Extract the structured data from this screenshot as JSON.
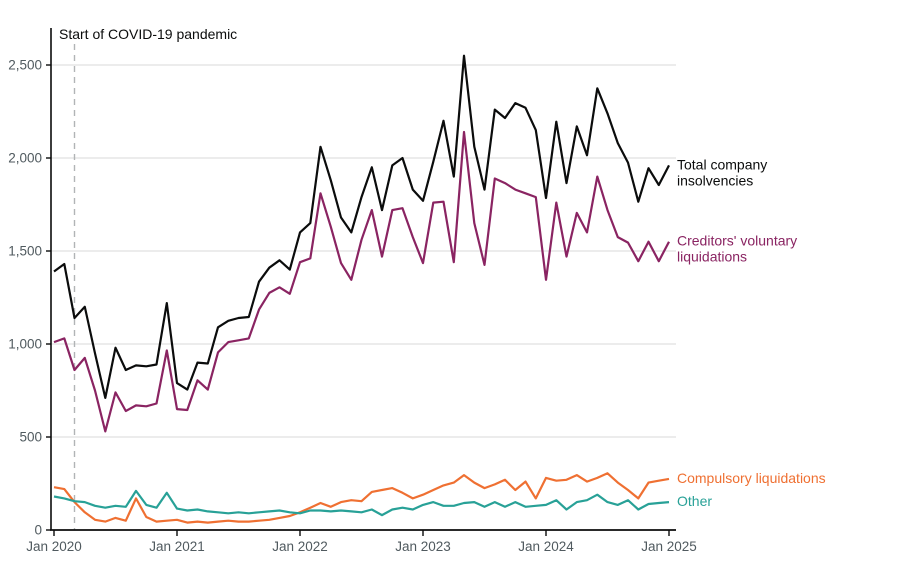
{
  "chart_data": {
    "type": "line",
    "title": "",
    "annotation": {
      "text": "Start of COVID-19 pandemic",
      "x_month": "Mar 2020"
    },
    "x_range": {
      "start": "Jan 2020",
      "end": "Jan 2025",
      "interval": "monthly",
      "points": 61
    },
    "x_tick_labels": [
      "Jan 2020",
      "Jan 2021",
      "Jan 2022",
      "Jan 2023",
      "Jan 2024",
      "Jan 2025"
    ],
    "y_tick_labels": [
      "0",
      "500",
      "1,000",
      "1,500",
      "2,000",
      "2,500"
    ],
    "y_tick_values": [
      0,
      500,
      1000,
      1500,
      2000,
      2500
    ],
    "ylim": [
      0,
      2600
    ],
    "grid": "horizontal",
    "legend_position": "line-end-labels-right",
    "colors": {
      "background": "#ffffff",
      "gridline": "#d9d9d9",
      "axis": "#0b0c0c",
      "tick_label": "#505a5f",
      "dashed_line": "#b1b4b6",
      "annotation_text": "#0b0c0c"
    },
    "series": [
      {
        "name": "Total company insolvencies",
        "label_lines": [
          "Total company",
          "insolvencies"
        ],
        "color": "#0b0c0c",
        "values": [
          1390,
          1430,
          1140,
          1200,
          950,
          710,
          980,
          860,
          885,
          880,
          890,
          1220,
          790,
          755,
          900,
          895,
          1090,
          1125,
          1140,
          1145,
          1335,
          1410,
          1450,
          1400,
          1600,
          1650,
          2060,
          1880,
          1680,
          1600,
          1790,
          1950,
          1720,
          1960,
          2000,
          1830,
          1770,
          1980,
          2200,
          1900,
          2550,
          2060,
          1830,
          2260,
          2215,
          2295,
          2270,
          2150,
          1785,
          2195,
          1865,
          2170,
          2015,
          2375,
          2240,
          2080,
          1975,
          1765,
          1945,
          1855,
          1960
        ]
      },
      {
        "name": "Creditors' voluntary liquidations",
        "label_lines": [
          "Creditors' voluntary",
          "liquidations"
        ],
        "color": "#8a2462",
        "values": [
          1010,
          1030,
          860,
          925,
          750,
          530,
          740,
          640,
          670,
          665,
          680,
          965,
          650,
          645,
          805,
          755,
          955,
          1010,
          1020,
          1030,
          1185,
          1275,
          1305,
          1270,
          1440,
          1460,
          1810,
          1630,
          1435,
          1345,
          1560,
          1720,
          1470,
          1720,
          1730,
          1575,
          1435,
          1760,
          1765,
          1440,
          2140,
          1650,
          1425,
          1890,
          1865,
          1830,
          1810,
          1790,
          1345,
          1760,
          1470,
          1705,
          1600,
          1900,
          1720,
          1575,
          1545,
          1445,
          1550,
          1445,
          1550
        ]
      },
      {
        "name": "Compulsory liquidations",
        "label_lines": [
          "Compulsory liquidations"
        ],
        "color": "#ef7032",
        "values": [
          230,
          220,
          150,
          95,
          55,
          45,
          65,
          50,
          170,
          70,
          45,
          50,
          55,
          40,
          45,
          40,
          45,
          50,
          45,
          45,
          50,
          55,
          65,
          75,
          95,
          120,
          145,
          125,
          150,
          160,
          155,
          205,
          215,
          225,
          200,
          170,
          190,
          215,
          240,
          255,
          295,
          255,
          225,
          245,
          270,
          215,
          260,
          170,
          280,
          265,
          270,
          295,
          260,
          280,
          305,
          255,
          215,
          170,
          255,
          265,
          275
        ]
      },
      {
        "name": "Other",
        "label_lines": [
          "Other"
        ],
        "color": "#28a197",
        "values": [
          180,
          170,
          155,
          150,
          130,
          120,
          130,
          125,
          210,
          135,
          120,
          200,
          115,
          105,
          110,
          100,
          95,
          90,
          95,
          90,
          95,
          100,
          105,
          95,
          90,
          105,
          105,
          100,
          105,
          100,
          95,
          110,
          80,
          110,
          120,
          110,
          135,
          150,
          130,
          130,
          145,
          150,
          125,
          150,
          125,
          150,
          125,
          130,
          135,
          160,
          110,
          150,
          160,
          190,
          150,
          135,
          160,
          110,
          140,
          145,
          150
        ]
      }
    ]
  }
}
